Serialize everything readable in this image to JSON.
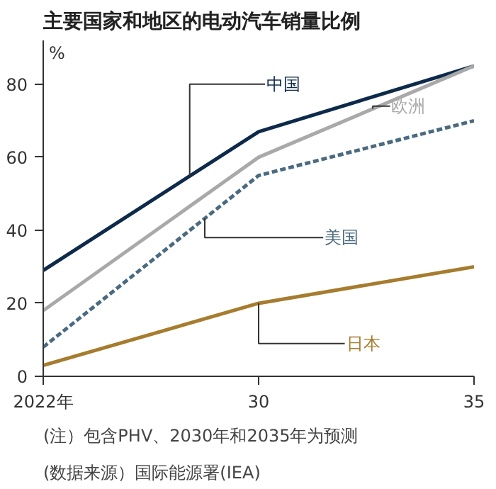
{
  "chart_data": {
    "type": "line",
    "title": "主要国家和地区的电动汽车销量比例",
    "ylabel": "%",
    "categories": [
      "2022年",
      "30",
      "35"
    ],
    "series": [
      {
        "name": "中国",
        "color": "#0d2a4a",
        "values": [
          29,
          67,
          85
        ]
      },
      {
        "name": "欧洲",
        "color": "#a9a9a9",
        "values": [
          18,
          60,
          85
        ]
      },
      {
        "name": "美国",
        "color": "#4a6a80",
        "values": [
          8,
          55,
          70
        ],
        "line_style": "dashed"
      },
      {
        "name": "日本",
        "color": "#a67c2e",
        "values": [
          3,
          20,
          30
        ]
      }
    ],
    "ylim": [
      0,
      92
    ],
    "yticks": [
      0,
      20,
      40,
      60,
      80
    ],
    "grid": false,
    "legend": false,
    "annotations": [
      "(注）包含PHV、2030年和2035年为预测",
      "(数据来源）国际能源署(IEA)"
    ]
  }
}
